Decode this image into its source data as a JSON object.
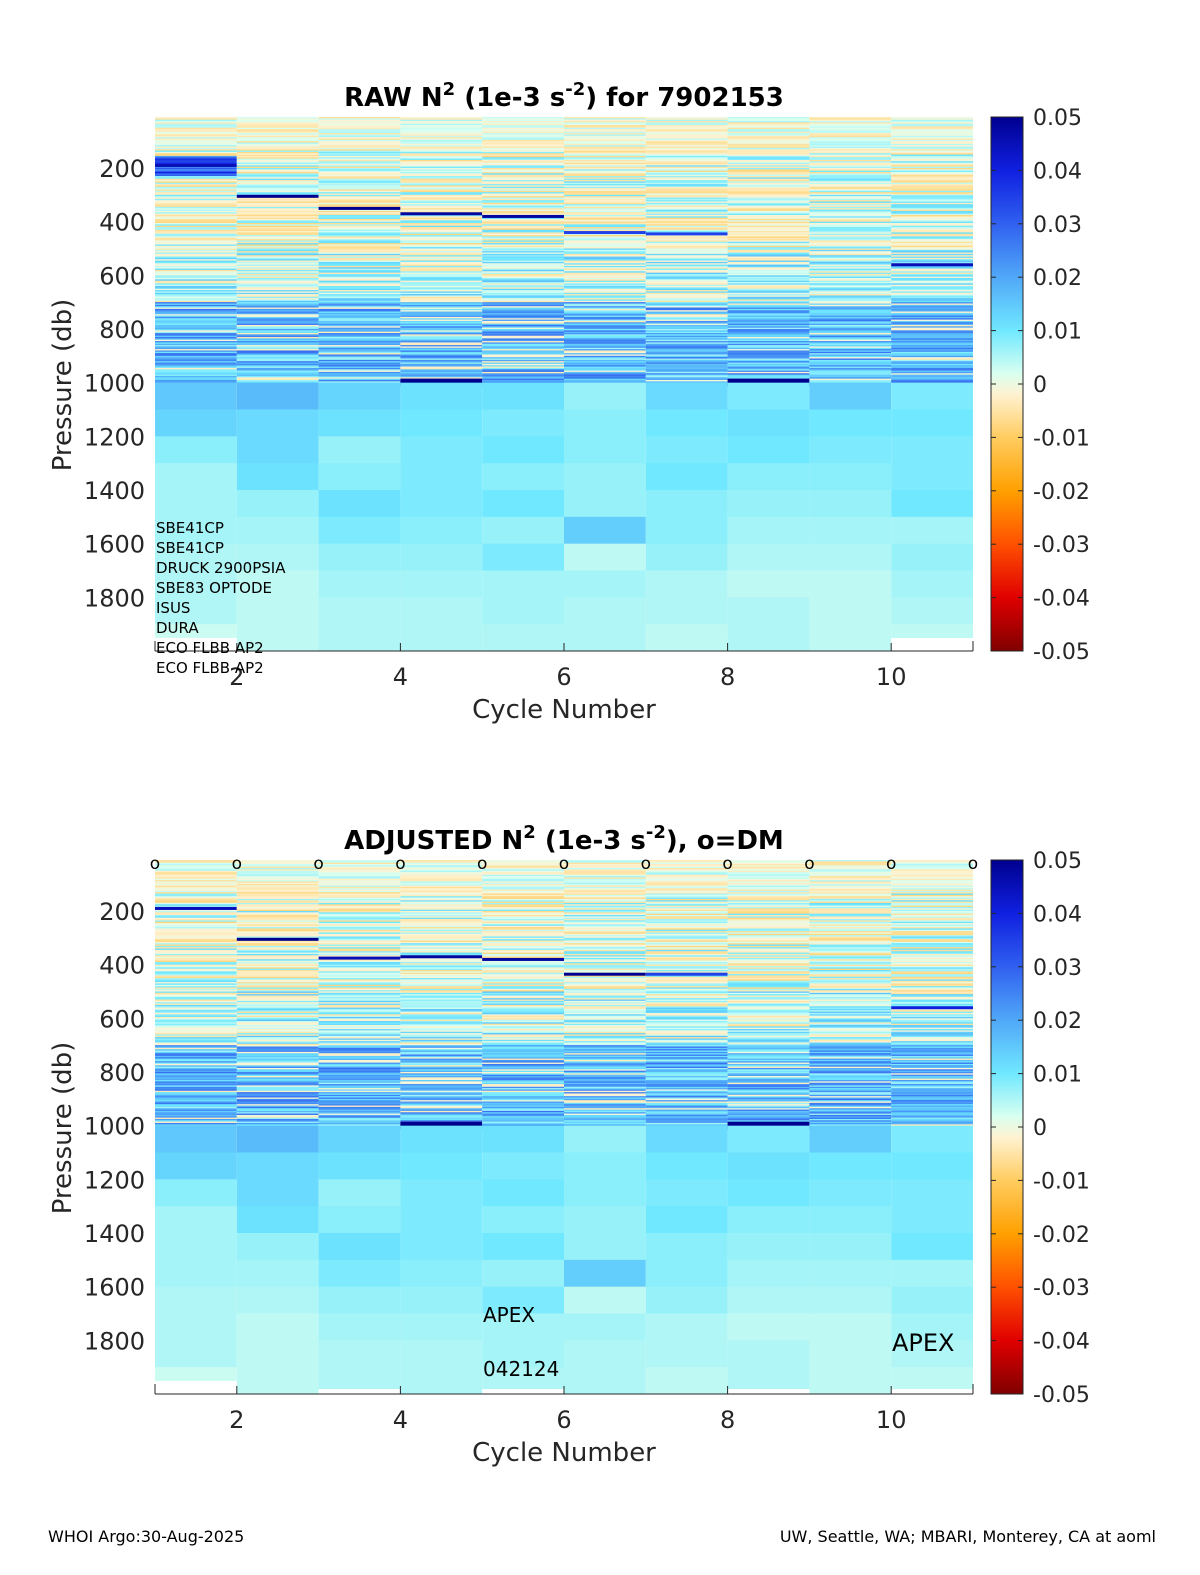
{
  "chart_data": [
    {
      "type": "heatmap",
      "title_prefix": "RAW N",
      "title_sup1": "2",
      "title_mid": " (1e-3 s",
      "title_sup2": "-2",
      "title_suffix": ") for 7902153",
      "xlabel": "Cycle Number",
      "ylabel": "Pressure (db)",
      "xlim": [
        1,
        11
      ],
      "ylim": [
        2000,
        10
      ],
      "xticks": [
        2,
        4,
        6,
        8,
        10
      ],
      "yticks": [
        200,
        400,
        600,
        800,
        1000,
        1200,
        1400,
        1600,
        1800
      ],
      "colorbar": {
        "min": -0.05,
        "max": 0.05,
        "tick_labels": [
          "0.05",
          "0.04",
          "0.03",
          "0.02",
          "0.01",
          "0",
          "-0.01",
          "-0.02",
          "-0.03",
          "-0.04",
          "-0.05"
        ]
      },
      "cycles": [
        1,
        2,
        3,
        4,
        5,
        6,
        7,
        8,
        9,
        10
      ],
      "max_pressure": [
        1950,
        2000,
        2000,
        2000,
        2000,
        2000,
        2000,
        2000,
        2000,
        1950
      ],
      "strong_layers": [
        {
          "cycle": 1,
          "pressure": 185,
          "value": 0.045
        },
        {
          "cycle": 2,
          "pressure": 300,
          "value": 0.05
        },
        {
          "cycle": 3,
          "pressure": 345,
          "value": 0.05
        },
        {
          "cycle": 4,
          "pressure": 365,
          "value": 0.048
        },
        {
          "cycle": 5,
          "pressure": 375,
          "value": 0.048
        },
        {
          "cycle": 6,
          "pressure": 435,
          "value": 0.035
        },
        {
          "cycle": 7,
          "pressure": 440,
          "value": 0.035
        },
        {
          "cycle": 10,
          "pressure": 555,
          "value": 0.045
        },
        {
          "cycle": 4,
          "pressure": 985,
          "value": 0.05
        },
        {
          "cycle": 8,
          "pressure": 985,
          "value": 0.05
        }
      ],
      "deep_blocks": [
        [
          0.015,
          0.013,
          0.008,
          0.006,
          0.006,
          0.006,
          0.005,
          0.005,
          0.005,
          0.003
        ],
        [
          0.017,
          0.012,
          0.012,
          0.011,
          0.007,
          0.006,
          0.005,
          0.004,
          0.004,
          0.004
        ],
        [
          0.013,
          0.011,
          0.007,
          0.008,
          0.011,
          0.009,
          0.007,
          0.006,
          0.005,
          0.005
        ],
        [
          0.011,
          0.01,
          0.009,
          0.009,
          0.009,
          0.008,
          0.007,
          0.006,
          0.005,
          0.005
        ],
        [
          0.011,
          0.009,
          0.01,
          0.008,
          0.01,
          0.007,
          0.009,
          0.006,
          0.006,
          0.005
        ],
        [
          0.007,
          0.008,
          0.008,
          0.007,
          0.007,
          0.014,
          0.004,
          0.006,
          0.005,
          0.005
        ],
        [
          0.012,
          0.01,
          0.009,
          0.01,
          0.008,
          0.008,
          0.007,
          0.005,
          0.005,
          0.004
        ],
        [
          0.009,
          0.011,
          0.01,
          0.008,
          0.007,
          0.006,
          0.005,
          0.004,
          0.005,
          0.005
        ],
        [
          0.014,
          0.01,
          0.009,
          0.008,
          0.007,
          0.006,
          0.005,
          0.004,
          0.004,
          0.004
        ],
        [
          0.009,
          0.01,
          0.009,
          0.009,
          0.01,
          0.006,
          0.007,
          0.006,
          0.005,
          0.004
        ]
      ],
      "annotations": [
        "SBE41CP",
        "SBE41CP",
        "DRUCK 2900PSIA",
        "SBE83 OPTODE",
        "ISUS",
        "DURA",
        "ECO FLBB AP2",
        "ECO FLBB AP2"
      ]
    },
    {
      "type": "heatmap",
      "title_prefix": "ADJUSTED N",
      "title_sup1": "2",
      "title_mid": " (1e-3 s",
      "title_sup2": "-2",
      "title_suffix": "), o=DM",
      "xlabel": "Cycle Number",
      "ylabel": "Pressure (db)",
      "xlim": [
        1,
        11
      ],
      "ylim": [
        2000,
        10
      ],
      "xticks": [
        2,
        4,
        6,
        8,
        10
      ],
      "yticks": [
        200,
        400,
        600,
        800,
        1000,
        1200,
        1400,
        1600,
        1800
      ],
      "colorbar": {
        "min": -0.05,
        "max": 0.05,
        "tick_labels": [
          "0.05",
          "0.04",
          "0.03",
          "0.02",
          "0.01",
          "0",
          "-0.01",
          "-0.02",
          "-0.03",
          "-0.04",
          "-0.05"
        ]
      },
      "cycles": [
        1,
        2,
        3,
        4,
        5,
        6,
        7,
        8,
        9,
        10
      ],
      "max_pressure": [
        1950,
        2000,
        1980,
        2000,
        1980,
        2000,
        2000,
        1980,
        2000,
        1980
      ],
      "dm_markers": [
        1,
        2,
        3,
        4,
        5,
        6,
        7,
        8,
        9,
        10,
        11
      ],
      "dm_marker_symbol": "o",
      "strong_layers": [
        {
          "cycle": 1,
          "pressure": 185,
          "value": 0.045
        },
        {
          "cycle": 2,
          "pressure": 300,
          "value": 0.05
        },
        {
          "cycle": 3,
          "pressure": 370,
          "value": 0.045
        },
        {
          "cycle": 4,
          "pressure": 365,
          "value": 0.048
        },
        {
          "cycle": 5,
          "pressure": 375,
          "value": 0.048
        },
        {
          "cycle": 6,
          "pressure": 430,
          "value": 0.05
        },
        {
          "cycle": 7,
          "pressure": 430,
          "value": 0.035
        },
        {
          "cycle": 10,
          "pressure": 555,
          "value": 0.04
        },
        {
          "cycle": 4,
          "pressure": 985,
          "value": 0.05
        },
        {
          "cycle": 8,
          "pressure": 985,
          "value": 0.05
        }
      ],
      "deep_blocks": [
        [
          0.015,
          0.013,
          0.008,
          0.006,
          0.006,
          0.006,
          0.005,
          0.005,
          0.005,
          0.003
        ],
        [
          0.017,
          0.012,
          0.012,
          0.011,
          0.007,
          0.006,
          0.005,
          0.004,
          0.004,
          0.004
        ],
        [
          0.013,
          0.011,
          0.007,
          0.008,
          0.011,
          0.009,
          0.007,
          0.006,
          0.005,
          0.005
        ],
        [
          0.011,
          0.01,
          0.009,
          0.009,
          0.009,
          0.008,
          0.007,
          0.006,
          0.005,
          0.005
        ],
        [
          0.011,
          0.009,
          0.01,
          0.008,
          0.01,
          0.007,
          0.009,
          0.006,
          0.006,
          0.005
        ],
        [
          0.007,
          0.008,
          0.008,
          0.007,
          0.007,
          0.014,
          0.004,
          0.006,
          0.005,
          0.005
        ],
        [
          0.012,
          0.01,
          0.009,
          0.01,
          0.008,
          0.008,
          0.007,
          0.005,
          0.005,
          0.004
        ],
        [
          0.009,
          0.011,
          0.01,
          0.008,
          0.007,
          0.006,
          0.005,
          0.004,
          0.005,
          0.005
        ],
        [
          0.014,
          0.01,
          0.009,
          0.008,
          0.007,
          0.006,
          0.005,
          0.004,
          0.004,
          0.004
        ],
        [
          0.009,
          0.01,
          0.009,
          0.009,
          0.01,
          0.006,
          0.007,
          0.006,
          0.005,
          0.004
        ]
      ],
      "annotations": [
        "APEX",
        "042124",
        "APEX"
      ]
    }
  ],
  "footer": {
    "left": "WHOI Argo:30-Aug-2025",
    "right": "UW, Seattle, WA; MBARI, Monterey, CA at aoml"
  }
}
